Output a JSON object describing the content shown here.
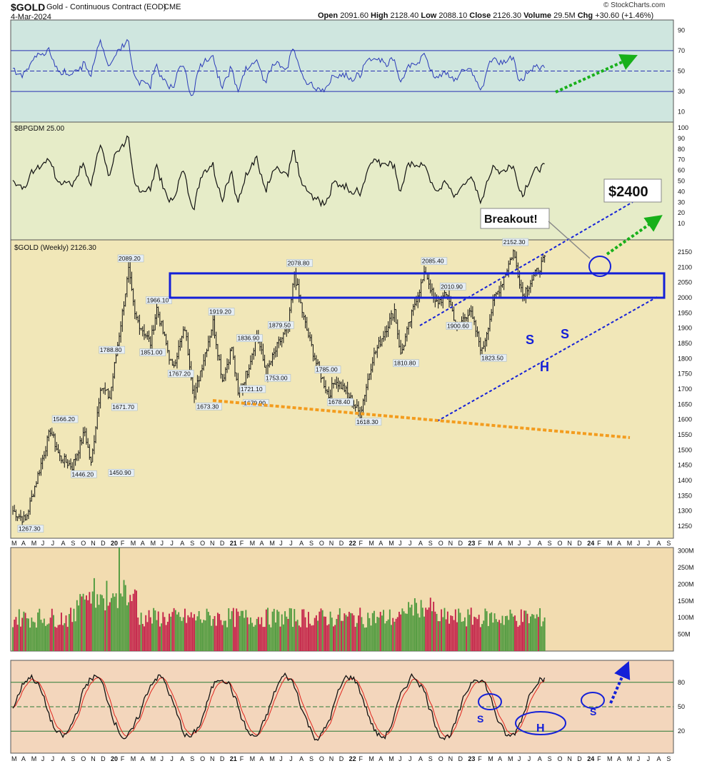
{
  "header": {
    "symbol": "$GOLD",
    "name": "Gold - Continuous Contract (EOD)",
    "exchange": "CME",
    "date": "4-Mar-2024",
    "open_label": "Open",
    "open": "2091.60",
    "high_label": "High",
    "high": "2128.40",
    "low_label": "Low",
    "low": "2088.10",
    "close_label": "Close",
    "close": "2126.30",
    "volume_label": "Volume",
    "volume": "29.5M",
    "chg_label": "Chg",
    "chg": "+30.60 (+1.46%)",
    "credit": "© StockCharts.com"
  },
  "colors": {
    "rsi_bg": "#cfe6df",
    "bpgdm_bg": "#e6ecc8",
    "price_bg": "#f1e7b8",
    "volume_bg": "#f2dcb0",
    "stoch_bg": "#f3d6bc",
    "up": "#4f9a3e",
    "down": "#c4244a",
    "blue": "#1420d8",
    "orange": "#f39c1e",
    "green_arrow": "#18b01a"
  },
  "chart_data": [
    {
      "panel": "rsi",
      "type": "line",
      "yticks": [
        "90",
        "70",
        "50",
        "30",
        "10"
      ],
      "ylim": [
        0,
        100
      ],
      "reference_lines": [
        70,
        50,
        30
      ]
    },
    {
      "panel": "bpgdm",
      "type": "line",
      "label": "$BPGDM 25.00",
      "yticks": [
        "100",
        "90",
        "80",
        "70",
        "60",
        "50",
        "40",
        "30",
        "20",
        "10"
      ],
      "ylim": [
        0,
        100
      ]
    },
    {
      "panel": "price",
      "type": "candlestick",
      "label": "$GOLD (Weekly) 2126.30",
      "ylim": [
        1210,
        2190
      ],
      "yticks": [
        "2150",
        "2100",
        "2050",
        "2000",
        "1950",
        "1900",
        "1850",
        "1800",
        "1750",
        "1700",
        "1650",
        "1600",
        "1550",
        "1500",
        "1450",
        "1400",
        "1350",
        "1300",
        "1250"
      ],
      "price_labels": [
        {
          "text": "2089.20",
          "value": 2089.2
        },
        {
          "text": "1966.10",
          "value": 1966.1
        },
        {
          "text": "1851.00",
          "value": 1851.0
        },
        {
          "text": "1788.80",
          "value": 1788.8
        },
        {
          "text": "1671.70",
          "value": 1671.7
        },
        {
          "text": "1566.20",
          "value": 1566.2
        },
        {
          "text": "1446.20",
          "value": 1446.2
        },
        {
          "text": "1450.90",
          "value": 1450.9
        },
        {
          "text": "1267.30",
          "value": 1267.3
        },
        {
          "text": "1767.20",
          "value": 1767.2
        },
        {
          "text": "1919.20",
          "value": 1919.2
        },
        {
          "text": "1836.90",
          "value": 1836.9
        },
        {
          "text": "1673.30",
          "value": 1673.3
        },
        {
          "text": "1721.10",
          "value": 1721.1
        },
        {
          "text": "1679.90",
          "value": 1679.9
        },
        {
          "text": "1879.50",
          "value": 1879.5
        },
        {
          "text": "1753.00",
          "value": 1753.0
        },
        {
          "text": "2078.80",
          "value": 2078.8
        },
        {
          "text": "1785.00",
          "value": 1785.0
        },
        {
          "text": "1678.40",
          "value": 1678.4
        },
        {
          "text": "1618.30",
          "value": 1618.3
        },
        {
          "text": "1810.80",
          "value": 1810.8
        },
        {
          "text": "2085.40",
          "value": 2085.4
        },
        {
          "text": "2010.90",
          "value": 2010.9
        },
        {
          "text": "1900.60",
          "value": 1900.6
        },
        {
          "text": "1823.50",
          "value": 1823.5
        },
        {
          "text": "2152.30",
          "value": 2152.3
        }
      ],
      "annotations": {
        "breakout": "Breakout!",
        "target": "$2400",
        "s_left": "S",
        "s_right": "S",
        "head": "H"
      }
    },
    {
      "panel": "volume",
      "type": "bar",
      "yticks": [
        "300M",
        "250M",
        "200M",
        "150M",
        "100M",
        "50M"
      ],
      "ylim": [
        0,
        310
      ]
    },
    {
      "panel": "stochastic",
      "type": "line",
      "yticks": [
        "80",
        "50",
        "20"
      ],
      "ylim": [
        0,
        100
      ],
      "annotations": {
        "s1": "S",
        "head": "H",
        "s2": "S"
      }
    }
  ],
  "x_axis": {
    "labels": [
      "M",
      "A",
      "M",
      "J",
      "J",
      "A",
      "S",
      "O",
      "N",
      "D",
      "20",
      "F",
      "M",
      "A",
      "M",
      "J",
      "J",
      "A",
      "S",
      "O",
      "N",
      "D",
      "21",
      "F",
      "M",
      "A",
      "M",
      "J",
      "J",
      "A",
      "S",
      "O",
      "N",
      "D",
      "22",
      "F",
      "M",
      "A",
      "M",
      "J",
      "J",
      "A",
      "S",
      "O",
      "N",
      "D",
      "23",
      "F",
      "M",
      "A",
      "M",
      "J",
      "J",
      "A",
      "S",
      "O",
      "N",
      "D",
      "24",
      "F",
      "M",
      "A",
      "M",
      "J",
      "J",
      "A",
      "S"
    ]
  }
}
